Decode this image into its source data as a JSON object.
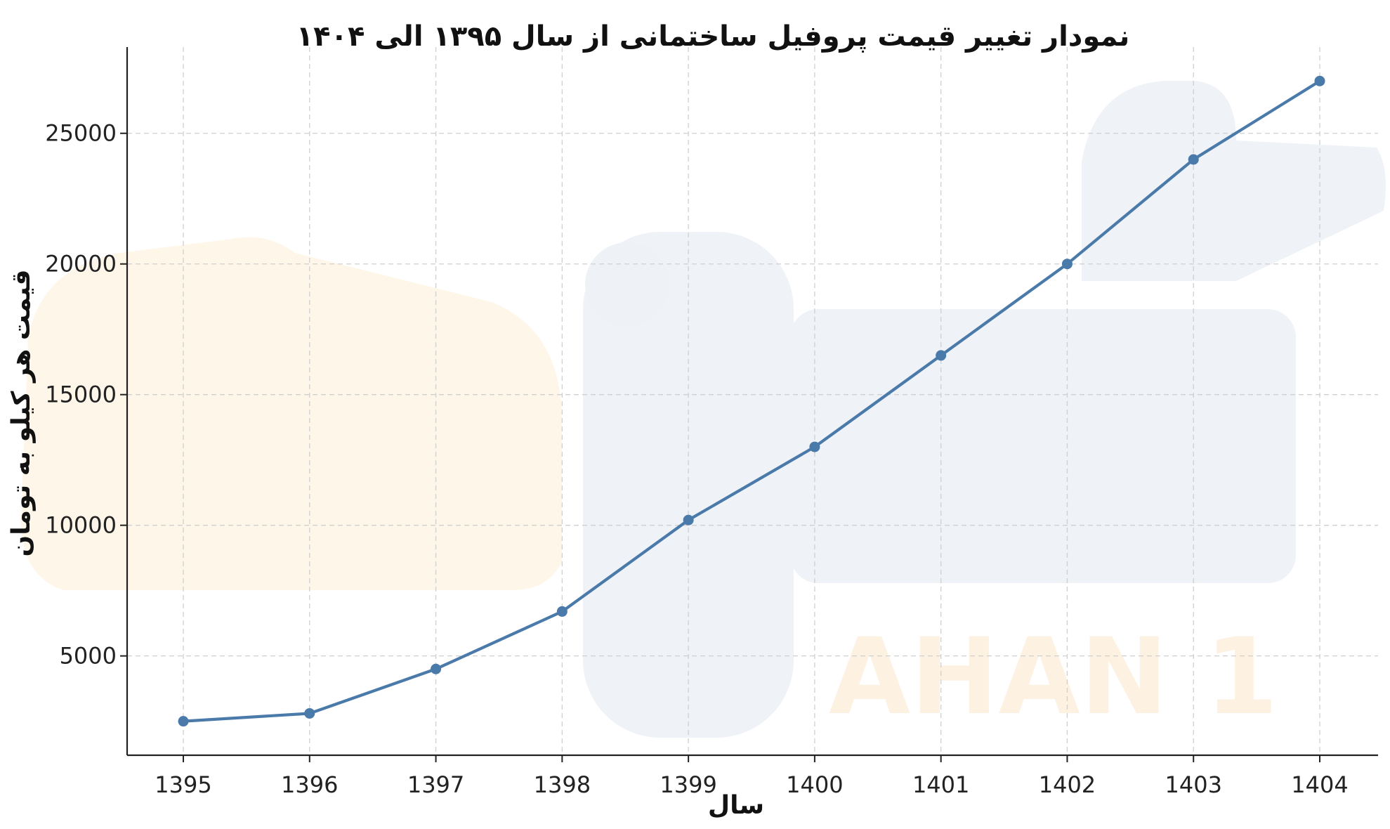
{
  "chart_data": {
    "type": "line",
    "title": "نمودار تغییر قیمت پروفیل ساختمانی از سال ۱۳۹۵ الی ۱۴۰۴",
    "xlabel": "سال",
    "ylabel": "قیمت هر کیلو به تومان",
    "categories": [
      "1395",
      "1396",
      "1397",
      "1398",
      "1399",
      "1400",
      "1401",
      "1402",
      "1403",
      "1404"
    ],
    "series": [
      {
        "values": [
          2500,
          2800,
          4500,
          6700,
          10200,
          13000,
          16500,
          20000,
          24000,
          27000
        ]
      }
    ],
    "yticks": [
      5000,
      10000,
      15000,
      20000,
      25000
    ],
    "ylim": [
      1200,
      28300
    ],
    "grid": true,
    "line_color": "#4a7aaa",
    "watermark": "AHAN 1"
  }
}
